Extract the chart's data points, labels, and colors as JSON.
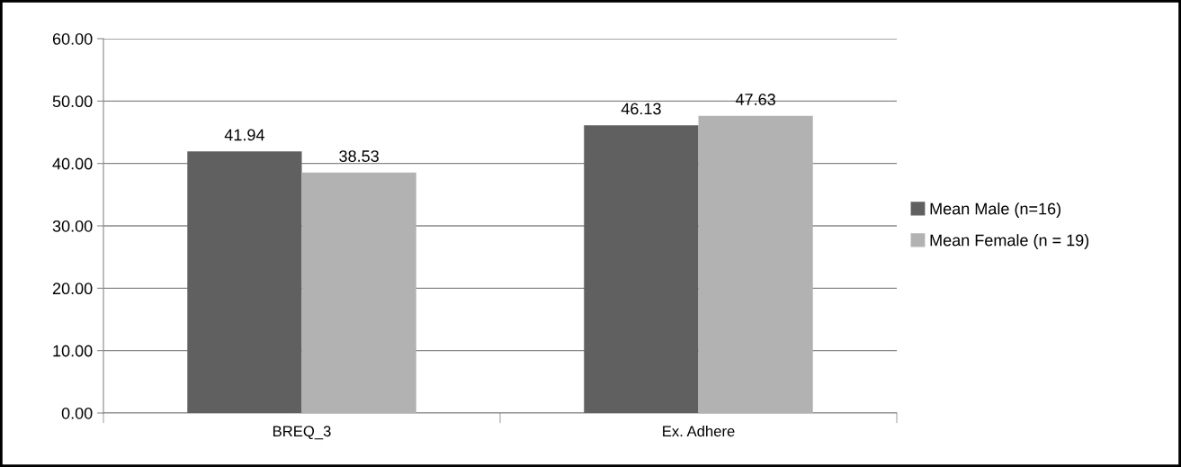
{
  "chart_data": {
    "type": "bar",
    "categories": [
      "BREQ_3",
      "Ex. Adhere"
    ],
    "series": [
      {
        "name": "Mean Male (n=16)",
        "color": "#606060",
        "values": [
          41.94,
          46.13
        ]
      },
      {
        "name": "Mean Female (n = 19)",
        "color": "#b2b2b2",
        "values": [
          38.53,
          47.63
        ]
      }
    ],
    "ylim": [
      0,
      60
    ],
    "yticks": [
      {
        "value": 0,
        "label": "0.00"
      },
      {
        "value": 10,
        "label": "10.00"
      },
      {
        "value": 20,
        "label": "20.00"
      },
      {
        "value": 30,
        "label": "30.00"
      },
      {
        "value": 40,
        "label": "40.00"
      },
      {
        "value": 50,
        "label": "50.00"
      },
      {
        "value": 60,
        "label": "60.00"
      }
    ],
    "grid": "y",
    "legend": "right",
    "data_labels": true
  }
}
